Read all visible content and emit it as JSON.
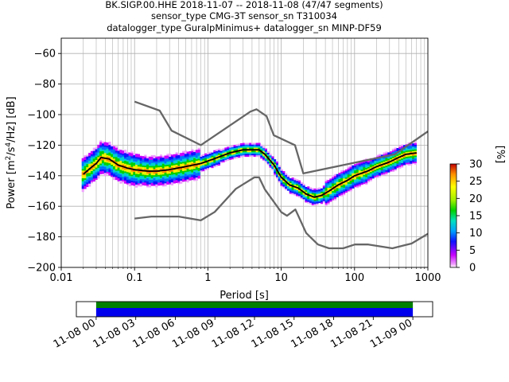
{
  "chart_data": {
    "type": "scatter",
    "title_lines": [
      "BK.SIGP.00.HHE   2018-11-07 -- 2018-11-08  (47/47 segments)",
      "sensor_type CMG-3T sensor_sn T310034",
      "datalogger_type GuralpMinimus+ datalogger_sn MINP-DF59"
    ],
    "xlabel": "Period [s]",
    "ylabel_parts": [
      "Power [m",
      "2",
      "/s",
      "4",
      "/Hz] [dB]"
    ],
    "xscale": "log",
    "xlim": [
      0.01,
      1000
    ],
    "ylim": [
      -200,
      -50
    ],
    "grid": true,
    "x_ticks": [
      {
        "value": 0.01,
        "label": "0.01"
      },
      {
        "value": 0.1,
        "label": "0.1"
      },
      {
        "value": 1,
        "label": "1"
      },
      {
        "value": 10,
        "label": "10"
      },
      {
        "value": 100,
        "label": "100"
      },
      {
        "value": 1000,
        "label": "1000"
      }
    ],
    "y_ticks": [
      {
        "value": -60,
        "label": "−60"
      },
      {
        "value": -80,
        "label": "−80"
      },
      {
        "value": -100,
        "label": "−100"
      },
      {
        "value": -120,
        "label": "−120"
      },
      {
        "value": -140,
        "label": "−140"
      },
      {
        "value": -160,
        "label": "−160"
      },
      {
        "value": -180,
        "label": "−180"
      },
      {
        "value": -200,
        "label": "−200"
      }
    ],
    "noise_models": [
      {
        "x": [
          0.1,
          0.22,
          0.32,
          0.8,
          3.8,
          4.6,
          6.3,
          7.9,
          15.4,
          20,
          354.8,
          1000
        ],
        "y": [
          -91.5,
          -97.4,
          -110.5,
          -120,
          -98,
          -96.5,
          -101,
          -113.5,
          -120,
          -138.5,
          -126,
          -111
        ]
      },
      {
        "x": [
          0.1,
          0.17,
          0.4,
          0.8,
          1.24,
          2.4,
          4.3,
          5,
          6,
          10,
          12,
          15.6,
          21.9,
          31.6,
          45,
          70,
          101,
          154,
          328,
          600,
          1000
        ],
        "y": [
          -168,
          -166.7,
          -166.7,
          -169.2,
          -163.7,
          -148.6,
          -141.1,
          -141.1,
          -149,
          -163.8,
          -166.2,
          -162.1,
          -177.5,
          -185,
          -187.5,
          -187.5,
          -185,
          -185,
          -187.5,
          -184.4,
          -178
        ]
      }
    ],
    "mean_curve": {
      "x": [
        0.02,
        0.025,
        0.03,
        0.035,
        0.045,
        0.06,
        0.08,
        0.1,
        0.15,
        0.2,
        0.3,
        0.5,
        0.8,
        1.2,
        2,
        3,
        4,
        5,
        6,
        8,
        10,
        13,
        17,
        22,
        28,
        35,
        45,
        60,
        80,
        100,
        150,
        200,
        300,
        400,
        500,
        700
      ],
      "y": [
        -139,
        -135,
        -132,
        -128,
        -129,
        -133,
        -135,
        -136,
        -137,
        -137,
        -136,
        -134,
        -132,
        -129,
        -125,
        -123,
        -123,
        -123,
        -126,
        -133,
        -141,
        -146,
        -148,
        -152,
        -154,
        -153,
        -150,
        -146,
        -143,
        -140,
        -137,
        -134,
        -131,
        -128,
        -126,
        -125
      ]
    },
    "colorbar": {
      "label": "[%]",
      "min": 0,
      "max": 30,
      "ticks": [
        {
          "value": 0,
          "label": "0"
        },
        {
          "value": 5,
          "label": "5"
        },
        {
          "value": 10,
          "label": "10"
        },
        {
          "value": 15,
          "label": "15"
        },
        {
          "value": 20,
          "label": "20"
        },
        {
          "value": 25,
          "label": "25"
        },
        {
          "value": 30,
          "label": "30"
        }
      ]
    },
    "timeline": {
      "tick_labels": [
        "11-08 00",
        "11-08 03",
        "11-08 06",
        "11-08 09",
        "11-08 12",
        "11-08 15",
        "11-08 18",
        "11-08 21",
        "11-09 00"
      ],
      "range_hours": [
        -1.5,
        25.5
      ],
      "coverage_hours": [
        0,
        24
      ]
    }
  }
}
